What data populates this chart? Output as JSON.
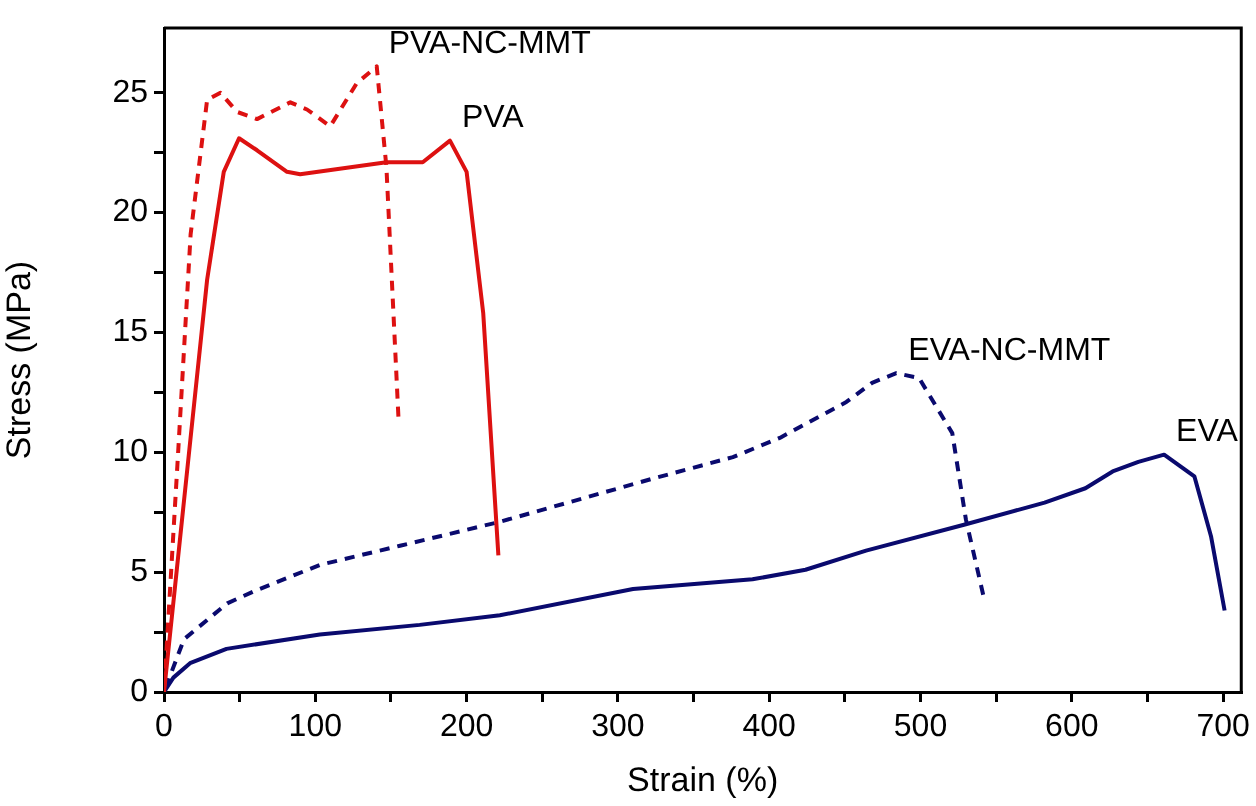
{
  "chart_data": {
    "type": "line",
    "xlabel": "Strain (%)",
    "ylabel": "Stress (MPa)",
    "xlim": [
      0,
      712
    ],
    "ylim": [
      0,
      27.7
    ],
    "xticks": [
      0,
      {
        "value": 50,
        "label": null
      },
      100,
      {
        "value": 150,
        "label": null
      },
      200,
      {
        "value": 250,
        "label": null
      },
      300,
      {
        "value": 350,
        "label": null
      },
      400,
      {
        "value": 450,
        "label": null
      },
      500,
      {
        "value": 550,
        "label": null
      },
      600,
      {
        "value": 650,
        "label": null
      },
      700
    ],
    "yticks": [
      0,
      {
        "value": 2.5,
        "label": null
      },
      5,
      {
        "value": 7.5,
        "label": null
      },
      10,
      {
        "value": 12.5,
        "label": null
      },
      15,
      {
        "value": 17.5,
        "label": null
      },
      20,
      {
        "value": 22.5,
        "label": null
      },
      25
    ],
    "grid": false,
    "legend": false,
    "series": [
      {
        "name": "PVA",
        "color": "#dd1111",
        "line_style": "solid",
        "x": [
          0,
          28.5,
          39.5,
          49.6,
          61.5,
          81.3,
          90,
          147,
          156,
          171,
          189,
          200,
          211,
          221
        ],
        "values": [
          0,
          17.2,
          21.7,
          23.1,
          22.6,
          21.7,
          21.6,
          22.1,
          22.1,
          22.1,
          23.0,
          21.7,
          15.8,
          5.7
        ]
      },
      {
        "name": "PVA-NC-MMT",
        "color": "#dd1111",
        "line_style": "dashed",
        "x": [
          0,
          8.8,
          17.6,
          28.5,
          37.3,
          48.3,
          61.5,
          83.5,
          94.5,
          109.9,
          127.4,
          140.6,
          147,
          155
        ],
        "values": [
          0,
          9.4,
          19.1,
          24.7,
          25.0,
          24.2,
          23.9,
          24.6,
          24.3,
          23.6,
          25.4,
          26.1,
          21.9,
          11.4
        ]
      },
      {
        "name": "EVA-NC-MMT",
        "color": "#0a0a6e",
        "line_style": "dashed",
        "x": [
          0,
          13.2,
          41.8,
          59.4,
          103,
          156,
          222,
          323,
          376,
          407,
          451,
          468,
          484,
          499,
          521,
          530,
          542
        ],
        "values": [
          0,
          2.2,
          3.7,
          4.2,
          5.3,
          6.1,
          7.1,
          8.9,
          9.8,
          10.6,
          12.1,
          12.9,
          13.3,
          13.1,
          10.8,
          7.2,
          3.9
        ]
      },
      {
        "name": "EVA",
        "color": "#0a0a6e",
        "line_style": "solid",
        "x": [
          0,
          6.2,
          17.2,
          41.3,
          103,
          169,
          222,
          310,
          389,
          424,
          464,
          530,
          582,
          609,
          627,
          644,
          661,
          681,
          692,
          701
        ],
        "values": [
          0,
          0.6,
          1.2,
          1.8,
          2.4,
          2.8,
          3.2,
          4.3,
          4.7,
          5.1,
          5.9,
          7.0,
          7.9,
          8.5,
          9.2,
          9.6,
          9.9,
          9.0,
          6.5,
          3.4
        ]
      }
    ]
  }
}
